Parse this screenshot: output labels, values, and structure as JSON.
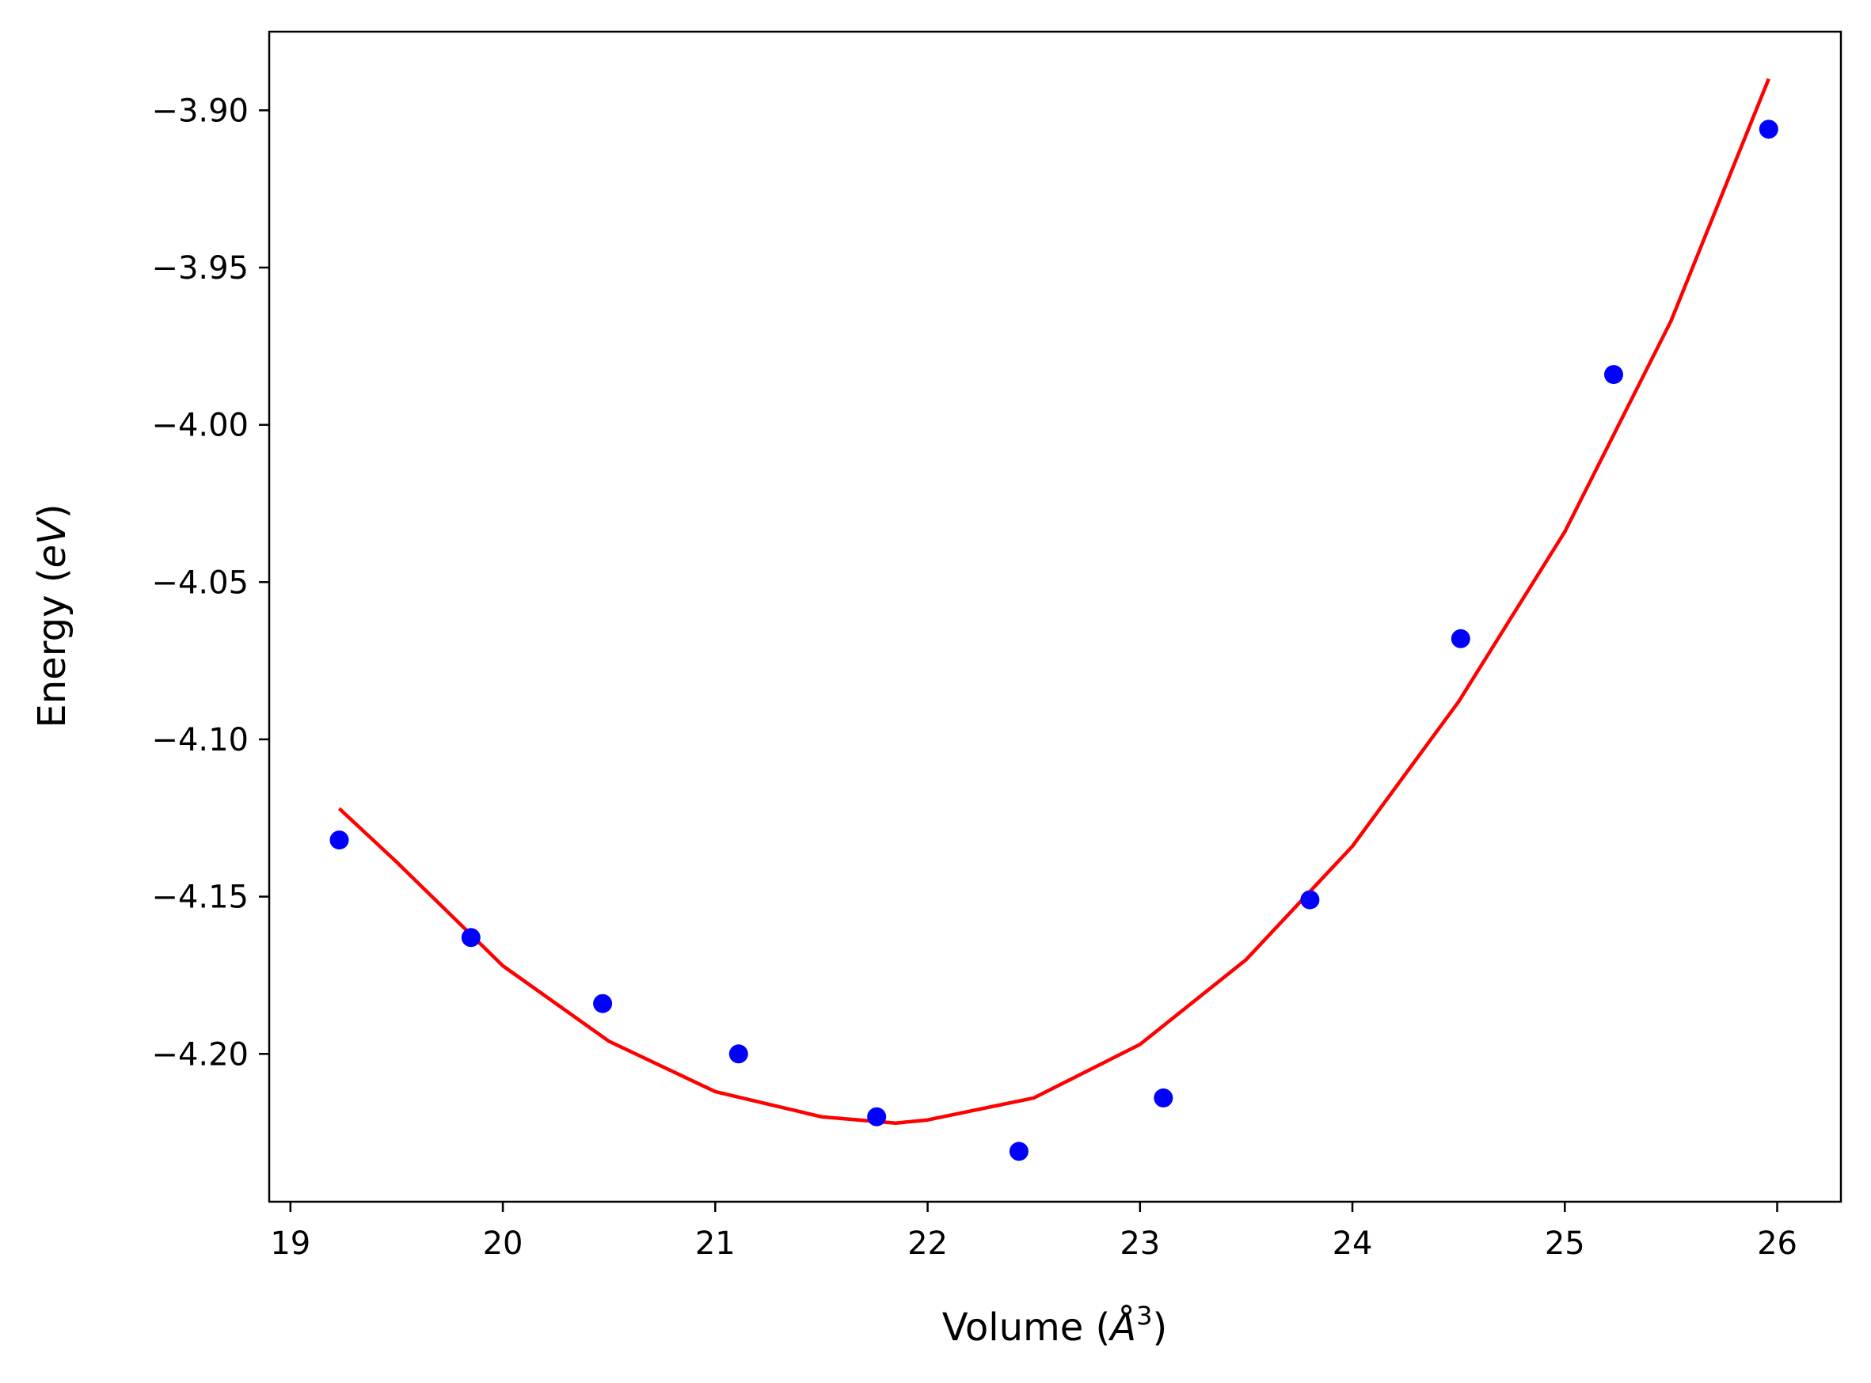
{
  "chart_data": {
    "type": "scatter",
    "title": "",
    "xlabel": {
      "pre": "Volume (",
      "sym": "Å",
      "sup": "3",
      "post": ")"
    },
    "ylabel": {
      "pre": "Energy (",
      "ital": "eV",
      "post": ")"
    },
    "xlim": [
      18.9,
      26.3
    ],
    "ylim": [
      -4.247,
      -3.875
    ],
    "xticks": [
      19,
      20,
      21,
      22,
      23,
      24,
      25,
      26
    ],
    "xtick_labels": [
      "19",
      "20",
      "21",
      "22",
      "23",
      "24",
      "25",
      "26"
    ],
    "yticks": [
      -3.9,
      -3.95,
      -4.0,
      -4.05,
      -4.1,
      -4.15,
      -4.2
    ],
    "ytick_labels": [
      "−3.90",
      "−3.95",
      "−4.00",
      "−4.05",
      "−4.10",
      "−4.15",
      "−4.20"
    ],
    "grid": false,
    "series": [
      {
        "kind": "points",
        "color": "#0000ff",
        "x": [
          19.23,
          19.85,
          20.47,
          21.11,
          21.76,
          22.43,
          23.11,
          23.8,
          24.51,
          25.23,
          25.96
        ],
        "y": [
          -4.132,
          -4.163,
          -4.184,
          -4.2,
          -4.22,
          -4.231,
          -4.214,
          -4.151,
          -4.068,
          -3.984,
          -3.906
        ]
      },
      {
        "kind": "line",
        "color": "#ff0000",
        "x": [
          19.23,
          19.5,
          20.0,
          20.5,
          21.0,
          21.5,
          21.85,
          22.0,
          22.5,
          23.0,
          23.5,
          24.0,
          24.5,
          25.0,
          25.5,
          25.96
        ],
        "y": [
          -4.122,
          -4.139,
          -4.172,
          -4.196,
          -4.212,
          -4.22,
          -4.222,
          -4.221,
          -4.214,
          -4.197,
          -4.17,
          -4.134,
          -4.088,
          -4.034,
          -3.967,
          -3.89
        ]
      }
    ]
  },
  "colors": {
    "axis": "#000000",
    "background": "#ffffff"
  }
}
